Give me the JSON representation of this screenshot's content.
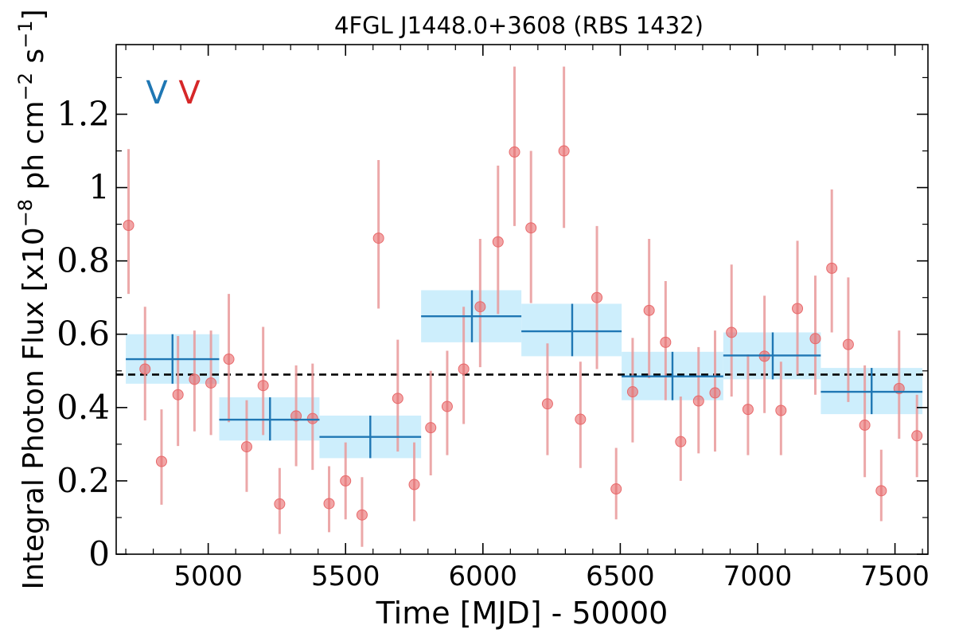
{
  "chart_data": {
    "type": "scatter",
    "title": "4FGL J1448.0+3608 (RBS 1432)",
    "xlabel": "Time [MJD] - 50000",
    "ylabel_prefix": "Integral Photon Flux [x10",
    "ylabel_exp1": "−8",
    "ylabel_mid": " ph cm",
    "ylabel_exp2": "−2",
    "ylabel_mid2": " s",
    "ylabel_exp3": "−1",
    "ylabel_suffix": "]",
    "xlim": [
      4665,
      7620
    ],
    "ylim": [
      0,
      1.39
    ],
    "xticks": [
      5000,
      5500,
      6000,
      6500,
      7000,
      7500
    ],
    "xtick_labels": [
      "5000",
      "5500",
      "6000",
      "6500",
      "7000",
      "7500"
    ],
    "yticks": [
      0,
      0.2,
      0.4,
      0.6,
      0.8,
      1.0,
      1.2
    ],
    "ytick_labels": [
      "0",
      "0.2",
      "0.4",
      "0.6",
      "0.8",
      "1",
      "1.2"
    ],
    "mean_flux": 0.49,
    "legend": {
      "placement": "top-left",
      "markers": [
        "V",
        "V"
      ]
    },
    "colors": {
      "points": "#e8696b",
      "errorbars": "#e99a9b",
      "bins": "#1f77b4",
      "bands": "#cdeefc",
      "mean": "#000000"
    },
    "series": [
      {
        "kind": "points",
        "x": [
          4710,
          4770,
          4830,
          4890,
          4950,
          5010,
          5075,
          5140,
          5200,
          5260,
          5320,
          5380,
          5440,
          5500,
          5560,
          5620,
          5690,
          5750,
          5810,
          5870,
          5930,
          5990,
          6055,
          6115,
          6175,
          6235,
          6295,
          6355,
          6415,
          6485,
          6545,
          6605,
          6665,
          6720,
          6785,
          6845,
          6905,
          6965,
          7025,
          7085,
          7145,
          7210,
          7270,
          7330,
          7390,
          7450,
          7515,
          7580
        ],
        "y": [
          0.897,
          0.505,
          0.253,
          0.435,
          0.477,
          0.467,
          0.532,
          0.293,
          0.46,
          0.137,
          0.377,
          0.37,
          0.138,
          0.2,
          0.107,
          0.862,
          0.425,
          0.19,
          0.345,
          0.403,
          0.505,
          0.675,
          0.852,
          1.097,
          0.89,
          0.41,
          1.1,
          0.368,
          0.7,
          0.178,
          0.443,
          0.665,
          0.578,
          0.307,
          0.418,
          0.44,
          0.605,
          0.395,
          0.54,
          0.392,
          0.67,
          0.588,
          0.78,
          0.572,
          0.352,
          0.173,
          0.452,
          0.323
        ],
        "ylo": [
          0.71,
          0.365,
          0.135,
          0.295,
          0.335,
          0.325,
          0.36,
          0.17,
          0.325,
          0.055,
          0.24,
          0.23,
          0.06,
          0.095,
          0.02,
          0.67,
          0.28,
          0.09,
          0.215,
          0.27,
          0.355,
          0.51,
          0.655,
          0.895,
          0.685,
          0.27,
          0.89,
          0.235,
          0.505,
          0.095,
          0.305,
          0.48,
          0.42,
          0.2,
          0.275,
          0.28,
          0.43,
          0.27,
          0.385,
          0.27,
          0.49,
          0.435,
          0.605,
          0.415,
          0.21,
          0.09,
          0.315,
          0.21
        ],
        "yhi": [
          1.105,
          0.675,
          0.395,
          0.595,
          0.61,
          0.61,
          0.71,
          0.42,
          0.62,
          0.235,
          0.515,
          0.52,
          0.24,
          0.305,
          0.21,
          1.075,
          0.585,
          0.305,
          0.5,
          0.555,
          0.675,
          0.86,
          1.06,
          1.33,
          1.1,
          0.575,
          1.33,
          0.525,
          0.895,
          0.29,
          0.59,
          0.86,
          0.745,
          0.43,
          0.565,
          0.61,
          0.79,
          0.545,
          0.705,
          0.525,
          0.855,
          0.76,
          0.995,
          0.755,
          0.515,
          0.285,
          0.61,
          0.435
        ]
      },
      {
        "kind": "bins",
        "x_lo": [
          4700,
          5040,
          5405,
          5775,
          6140,
          6505,
          6875,
          7230
        ],
        "x_hi": [
          5040,
          5405,
          5775,
          6140,
          6505,
          6875,
          7230,
          7600
        ],
        "x_center": [
          4870,
          5225,
          5590,
          5960,
          6325,
          6690,
          7055,
          7415
        ],
        "y": [
          0.532,
          0.367,
          0.32,
          0.649,
          0.608,
          0.485,
          0.542,
          0.443
        ],
        "ylo": [
          0.465,
          0.31,
          0.262,
          0.578,
          0.54,
          0.42,
          0.477,
          0.382
        ],
        "yhi": [
          0.6,
          0.428,
          0.378,
          0.72,
          0.683,
          0.552,
          0.605,
          0.508
        ]
      }
    ]
  }
}
